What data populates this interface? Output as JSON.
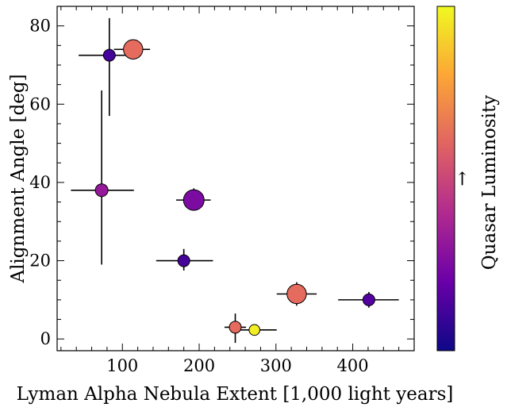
{
  "chart_data": {
    "type": "scatter",
    "title": "",
    "xlabel": "Lyman Alpha Nebula Extent [1,000 light years]",
    "ylabel": "Alignment Angle [deg]",
    "colorbar_label": "Quasar Luminosity",
    "colorbar_arrow": "→",
    "xlim": [
      15,
      480
    ],
    "ylim": [
      -3,
      85
    ],
    "xticks": [
      100,
      200,
      300,
      400
    ],
    "yticks": [
      0,
      20,
      40,
      60,
      80
    ],
    "grid": false,
    "legend": "none",
    "colormap": [
      "#0d0887",
      "#6a00a8",
      "#b12a90",
      "#e16462",
      "#fca636",
      "#f0f921"
    ],
    "points": [
      {
        "x": 83,
        "y": 72.5,
        "xerr_lo": 40,
        "xerr_hi": 27,
        "yerr_lo": 15.5,
        "yerr_hi": 9.5,
        "luminosity": 0.12,
        "size": 0.35
      },
      {
        "x": 114,
        "y": 74,
        "xerr_lo": 25,
        "xerr_hi": 22,
        "yerr_lo": 0,
        "yerr_hi": 0,
        "luminosity": 0.62,
        "size": 0.82
      },
      {
        "x": 73,
        "y": 38,
        "xerr_lo": 40,
        "xerr_hi": 42,
        "yerr_lo": 19,
        "yerr_hi": 25.5,
        "luminosity": 0.32,
        "size": 0.4
      },
      {
        "x": 193,
        "y": 35.5,
        "xerr_lo": 23,
        "xerr_hi": 22,
        "yerr_lo": 2.5,
        "yerr_hi": 3,
        "luminosity": 0.25,
        "size": 0.9
      },
      {
        "x": 180,
        "y": 20,
        "xerr_lo": 36,
        "xerr_hi": 38,
        "yerr_lo": 2.5,
        "yerr_hi": 3,
        "luminosity": 0.12,
        "size": 0.35
      },
      {
        "x": 247,
        "y": 3,
        "xerr_lo": 14,
        "xerr_hi": 14,
        "yerr_lo": 4,
        "yerr_hi": 3.5,
        "luminosity": 0.62,
        "size": 0.35
      },
      {
        "x": 272,
        "y": 2.3,
        "xerr_lo": 18,
        "xerr_hi": 29,
        "yerr_lo": 0,
        "yerr_hi": 0,
        "luminosity": 0.97,
        "size": 0.28
      },
      {
        "x": 327,
        "y": 11.5,
        "xerr_lo": 26,
        "xerr_hi": 26,
        "yerr_lo": 3,
        "yerr_hi": 3,
        "luminosity": 0.62,
        "size": 0.82
      },
      {
        "x": 421,
        "y": 10,
        "xerr_lo": 40,
        "xerr_hi": 39,
        "yerr_lo": 2,
        "yerr_hi": 2,
        "luminosity": 0.15,
        "size": 0.35
      }
    ]
  }
}
